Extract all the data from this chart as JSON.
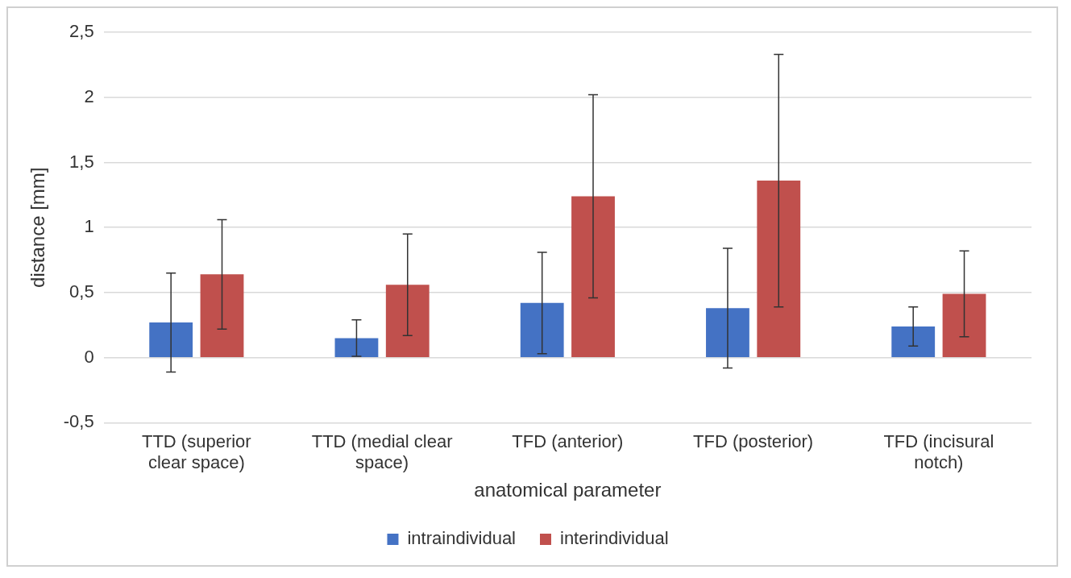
{
  "chart_data": {
    "type": "bar",
    "xlabel": "anatomical parameter",
    "ylabel": "distance [mm]",
    "categories": [
      "TTD (superior clear space)",
      "TTD (medial clear space)",
      "TFD (anterior)",
      "TFD (posterior)",
      "TFD (incisural notch)"
    ],
    "series": [
      {
        "name": "intraindividual",
        "color": "#4472c4",
        "values": [
          0.27,
          0.15,
          0.42,
          0.38,
          0.24
        ],
        "errors": [
          0.38,
          0.14,
          0.39,
          0.46,
          0.15
        ]
      },
      {
        "name": "interindividual",
        "color": "#c0504d",
        "values": [
          0.64,
          0.56,
          1.24,
          1.36,
          0.49
        ],
        "errors": [
          0.42,
          0.39,
          0.78,
          0.97,
          0.33
        ]
      }
    ],
    "ylim": [
      -0.5,
      2.5
    ],
    "yticks": [
      {
        "value": -0.5,
        "label": "-0,5"
      },
      {
        "value": 0,
        "label": "0"
      },
      {
        "value": 0.5,
        "label": "0,5"
      },
      {
        "value": 1,
        "label": "1"
      },
      {
        "value": 1.5,
        "label": "1,5"
      },
      {
        "value": 2,
        "label": "2"
      },
      {
        "value": 2.5,
        "label": "2,5"
      }
    ],
    "grid": "y",
    "legend": "bottom"
  }
}
